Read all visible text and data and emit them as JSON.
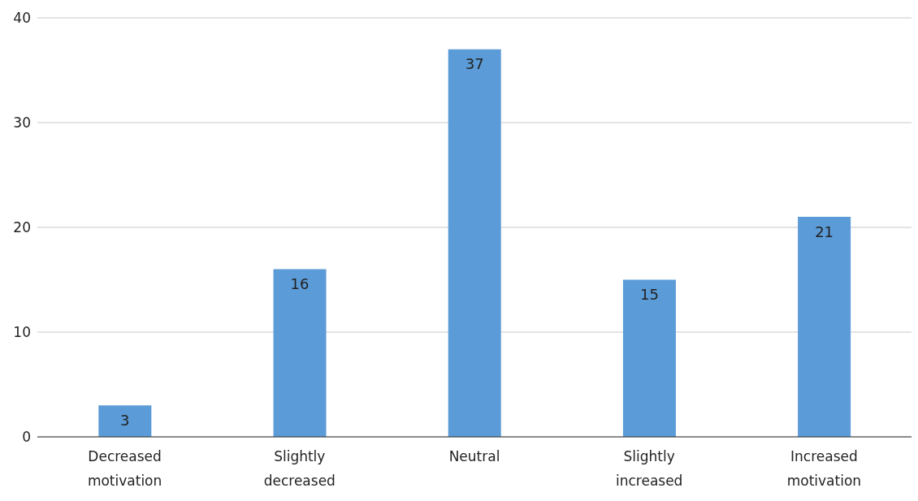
{
  "chart_data": {
    "type": "bar",
    "categories": [
      "Decreased motivation",
      "Slightly decreased",
      "Neutral",
      "Slightly increased",
      "Increased motivation"
    ],
    "values": [
      3,
      16,
      37,
      15,
      21
    ],
    "color": "#5b9bd7",
    "ylim": [
      0,
      40
    ],
    "yticks": [
      0,
      10,
      20,
      30,
      40
    ],
    "grid": "y",
    "data_labels": true
  }
}
